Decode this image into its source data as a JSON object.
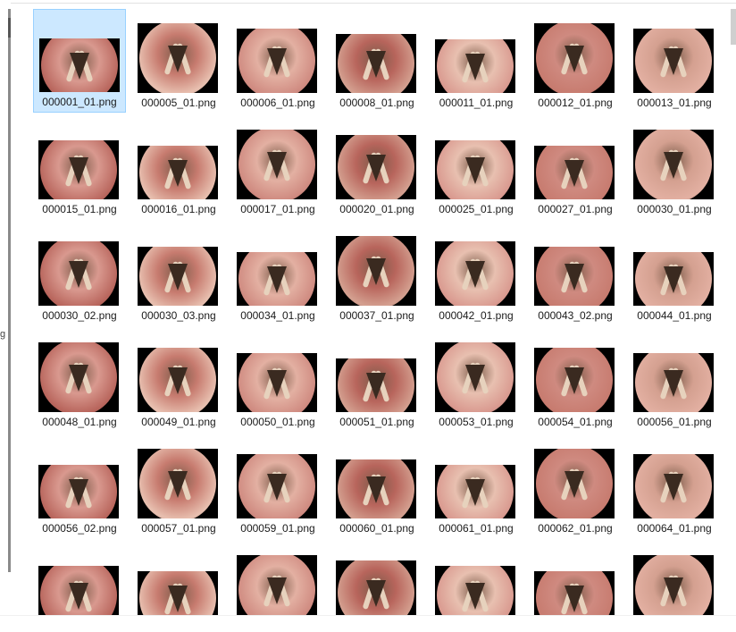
{
  "files": [
    "000001_01.png",
    "000005_01.png",
    "000006_01.png",
    "000008_01.png",
    "000011_01.png",
    "000012_01.png",
    "000013_01.png",
    "000015_01.png",
    "000016_01.png",
    "000017_01.png",
    "000020_01.png",
    "000025_01.png",
    "000027_01.png",
    "000030_01.png",
    "000030_02.png",
    "000030_03.png",
    "000034_01.png",
    "000037_01.png",
    "000042_01.png",
    "000043_02.png",
    "000044_01.png",
    "000048_01.png",
    "000049_01.png",
    "000050_01.png",
    "000051_01.png",
    "000053_01.png",
    "000054_01.png",
    "000056_01.png",
    "000056_02.png",
    "000057_01.png",
    "000059_01.png",
    "000060_01.png",
    "000061_01.png",
    "000062_01.png",
    "000064_01.png",
    "",
    "",
    "",
    "",
    "",
    "",
    ""
  ],
  "selected_index": 0,
  "thumb_icon": "laryngoscopy-image-thumbnail",
  "colors": {
    "selection_bg": "#cce8ff",
    "selection_border": "#99d1ff",
    "tissue_palette": [
      "#d9998f",
      "#c77b6f",
      "#e3b0a2",
      "#b8655c",
      "#e8c0b0",
      "#cf8a80",
      "#d4a090"
    ]
  },
  "left_glyph": "g"
}
